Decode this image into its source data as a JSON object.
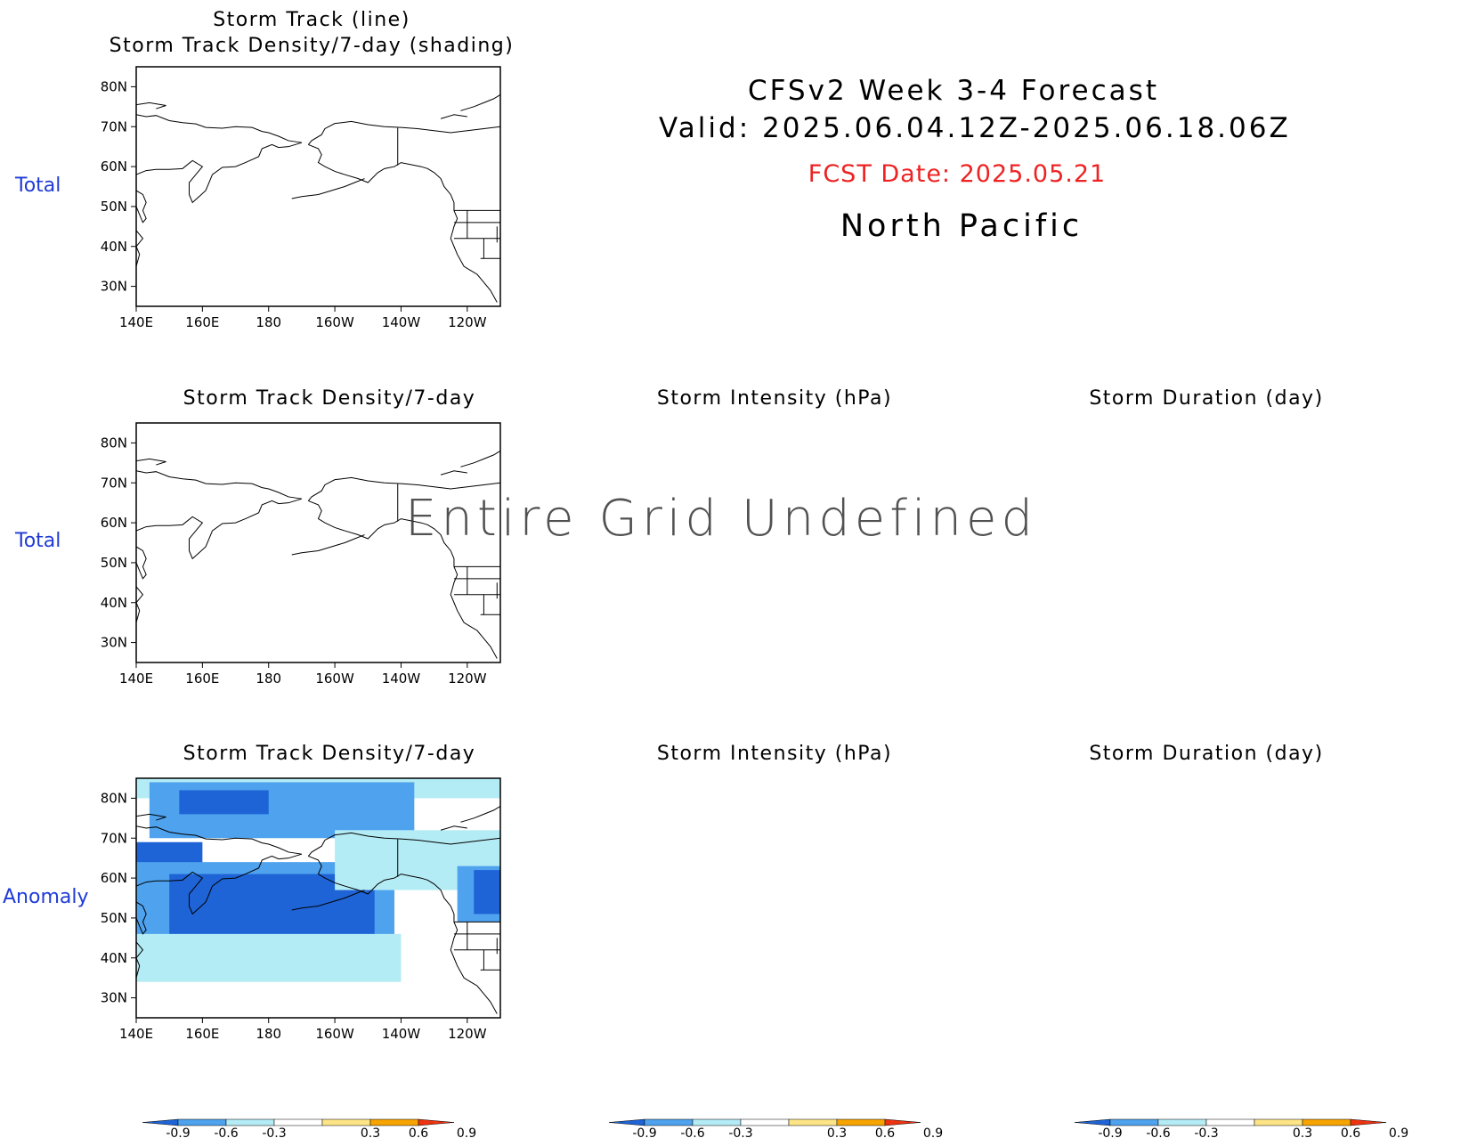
{
  "header": {
    "line1": "CFSv2 Week 3-4 Forecast",
    "line2": "Valid: 2025.06.04.12Z-2025.06.18.06Z",
    "fcst": "FCST Date: 2025.05.21",
    "region": "North Pacific",
    "colors": {
      "fcst": "#ee2222",
      "row_label": "#1f3bd6"
    }
  },
  "undefined_message": "Entire Grid Undefined",
  "rows": [
    {
      "label": "Total"
    },
    {
      "label": "Total"
    },
    {
      "label": "Anomaly"
    }
  ],
  "chart_data": [
    {
      "type": "heatmap",
      "title": "Storm Track (line)",
      "subtitle": "Storm Track Density/7-day (shading)",
      "x_ticks": [
        "140E",
        "160E",
        "180",
        "160W",
        "140W",
        "120W"
      ],
      "y_ticks": [
        "80N",
        "70N",
        "60N",
        "50N",
        "40N",
        "30N"
      ],
      "xlim_deg_east": [
        140,
        250
      ],
      "ylim_deg_north": [
        25,
        85
      ],
      "shading": "none"
    },
    {
      "type": "heatmap",
      "title": "Storm Track Density/7-day",
      "x_ticks": [
        "140E",
        "160E",
        "180",
        "160W",
        "140W",
        "120W"
      ],
      "y_ticks": [
        "80N",
        "70N",
        "60N",
        "50N",
        "40N",
        "30N"
      ],
      "xlim_deg_east": [
        140,
        250
      ],
      "ylim_deg_north": [
        25,
        85
      ],
      "shading": "none"
    },
    {
      "type": "heatmap",
      "title": "Storm Intensity (hPa)",
      "shading": "undefined"
    },
    {
      "type": "heatmap",
      "title": "Storm Duration (day)",
      "shading": "undefined"
    },
    {
      "type": "heatmap",
      "title": "Storm Track Density/7-day",
      "x_ticks": [
        "140E",
        "160E",
        "180",
        "160W",
        "140W",
        "120W"
      ],
      "y_ticks": [
        "80N",
        "70N",
        "60N",
        "50N",
        "40N",
        "30N"
      ],
      "xlim_deg_east": [
        140,
        250
      ],
      "ylim_deg_north": [
        25,
        85
      ],
      "anomaly_regions": [
        {
          "level": -0.3,
          "lon": [
            140,
            250
          ],
          "lat": [
            80,
            85
          ]
        },
        {
          "level": -0.6,
          "lon": [
            144,
            224
          ],
          "lat": [
            70,
            84
          ]
        },
        {
          "level": -0.9,
          "lon": [
            153,
            180
          ],
          "lat": [
            76,
            82
          ]
        },
        {
          "level": -0.9,
          "lon": [
            140,
            160
          ],
          "lat": [
            57,
            69
          ]
        },
        {
          "level": -0.6,
          "lon": [
            140,
            218
          ],
          "lat": [
            35,
            64
          ]
        },
        {
          "level": -0.9,
          "lon": [
            150,
            212
          ],
          "lat": [
            43,
            61
          ]
        },
        {
          "level": -0.3,
          "lon": [
            140,
            220
          ],
          "lat": [
            34,
            46
          ]
        },
        {
          "level": -0.3,
          "lon": [
            200,
            250
          ],
          "lat": [
            57,
            72
          ]
        },
        {
          "level": -0.6,
          "lon": [
            237,
            250
          ],
          "lat": [
            49,
            63
          ]
        },
        {
          "level": -0.9,
          "lon": [
            242,
            250
          ],
          "lat": [
            51,
            62
          ]
        }
      ]
    },
    {
      "type": "heatmap",
      "title": "Storm Intensity (hPa)",
      "shading": "none"
    },
    {
      "type": "heatmap",
      "title": "Storm Duration (day)",
      "shading": "none"
    }
  ],
  "colorbar": {
    "levels": [
      "-0.9",
      "-0.6",
      "-0.3",
      "0.3",
      "0.6",
      "0.9"
    ],
    "colors": [
      "#1e64d6",
      "#4ea2ee",
      "#b4ecf5",
      "#ffffff",
      "#fde587",
      "#f7a400",
      "#ee3311"
    ]
  }
}
